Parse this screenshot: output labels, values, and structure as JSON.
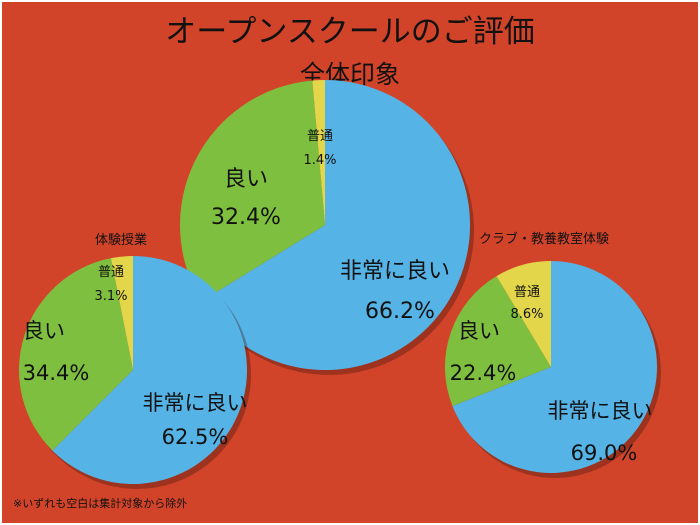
{
  "title": "オープンスクールのご評価",
  "subtitle": "全体印象",
  "footnote": "※いずれも空白は集計対象から除外",
  "colors": {
    "background": "#d2442a",
    "very_good": "#55b3e6",
    "good": "#7fbf3f",
    "average": "#e3d64a"
  },
  "chart_data": [
    {
      "type": "pie",
      "title": "全体印象",
      "slices": [
        {
          "name": "非常に良い",
          "value": 66.2,
          "label": "66.2%"
        },
        {
          "name": "良い",
          "value": 32.4,
          "label": "32.4%"
        },
        {
          "name": "普通",
          "value": 1.4,
          "label": "1.4%"
        }
      ]
    },
    {
      "type": "pie",
      "title": "体験授業",
      "slices": [
        {
          "name": "非常に良い",
          "value": 62.5,
          "label": "62.5%"
        },
        {
          "name": "良い",
          "value": 34.4,
          "label": "34.4%"
        },
        {
          "name": "普通",
          "value": 3.1,
          "label": "3.1%"
        }
      ]
    },
    {
      "type": "pie",
      "title": "クラブ・教養教室体験",
      "slices": [
        {
          "name": "非常に良い",
          "value": 69.0,
          "label": "69.0%"
        },
        {
          "name": "良い",
          "value": 22.4,
          "label": "22.4%"
        },
        {
          "name": "普通",
          "value": 8.6,
          "label": "8.6%"
        }
      ]
    }
  ]
}
